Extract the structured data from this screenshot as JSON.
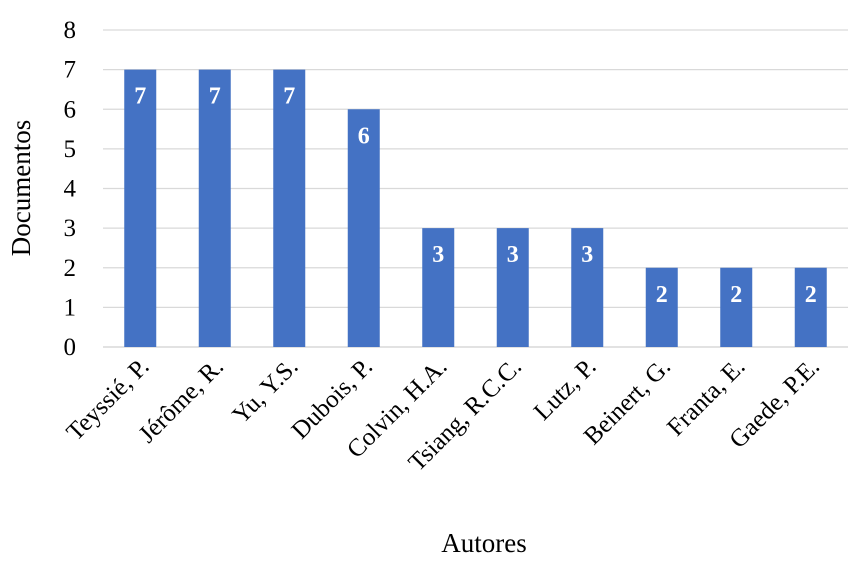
{
  "chart_data": {
    "type": "bar",
    "categories": [
      "Teyssié, P.",
      "Jérôme, R.",
      "Yu, Y.S.",
      "Dubois, P.",
      "Colvin, H.A.",
      "Tsiang, R.C.C.",
      "Lutz, P.",
      "Beinert, G.",
      "Franta, E.",
      "Gaede, P.E."
    ],
    "values": [
      7,
      7,
      7,
      6,
      3,
      3,
      3,
      2,
      2,
      2
    ],
    "data_labels": [
      "7",
      "7",
      "7",
      "6",
      "3",
      "3",
      "3",
      "2",
      "2",
      "2"
    ],
    "xlabel": "Autores",
    "ylabel": "Documentos",
    "ylim": [
      0,
      8
    ],
    "yticks": [
      "0",
      "1",
      "2",
      "3",
      "4",
      "5",
      "6",
      "7",
      "8"
    ],
    "grid": true,
    "legend": false,
    "bar_color": "#4472c4",
    "label_color": "#ffffff"
  }
}
